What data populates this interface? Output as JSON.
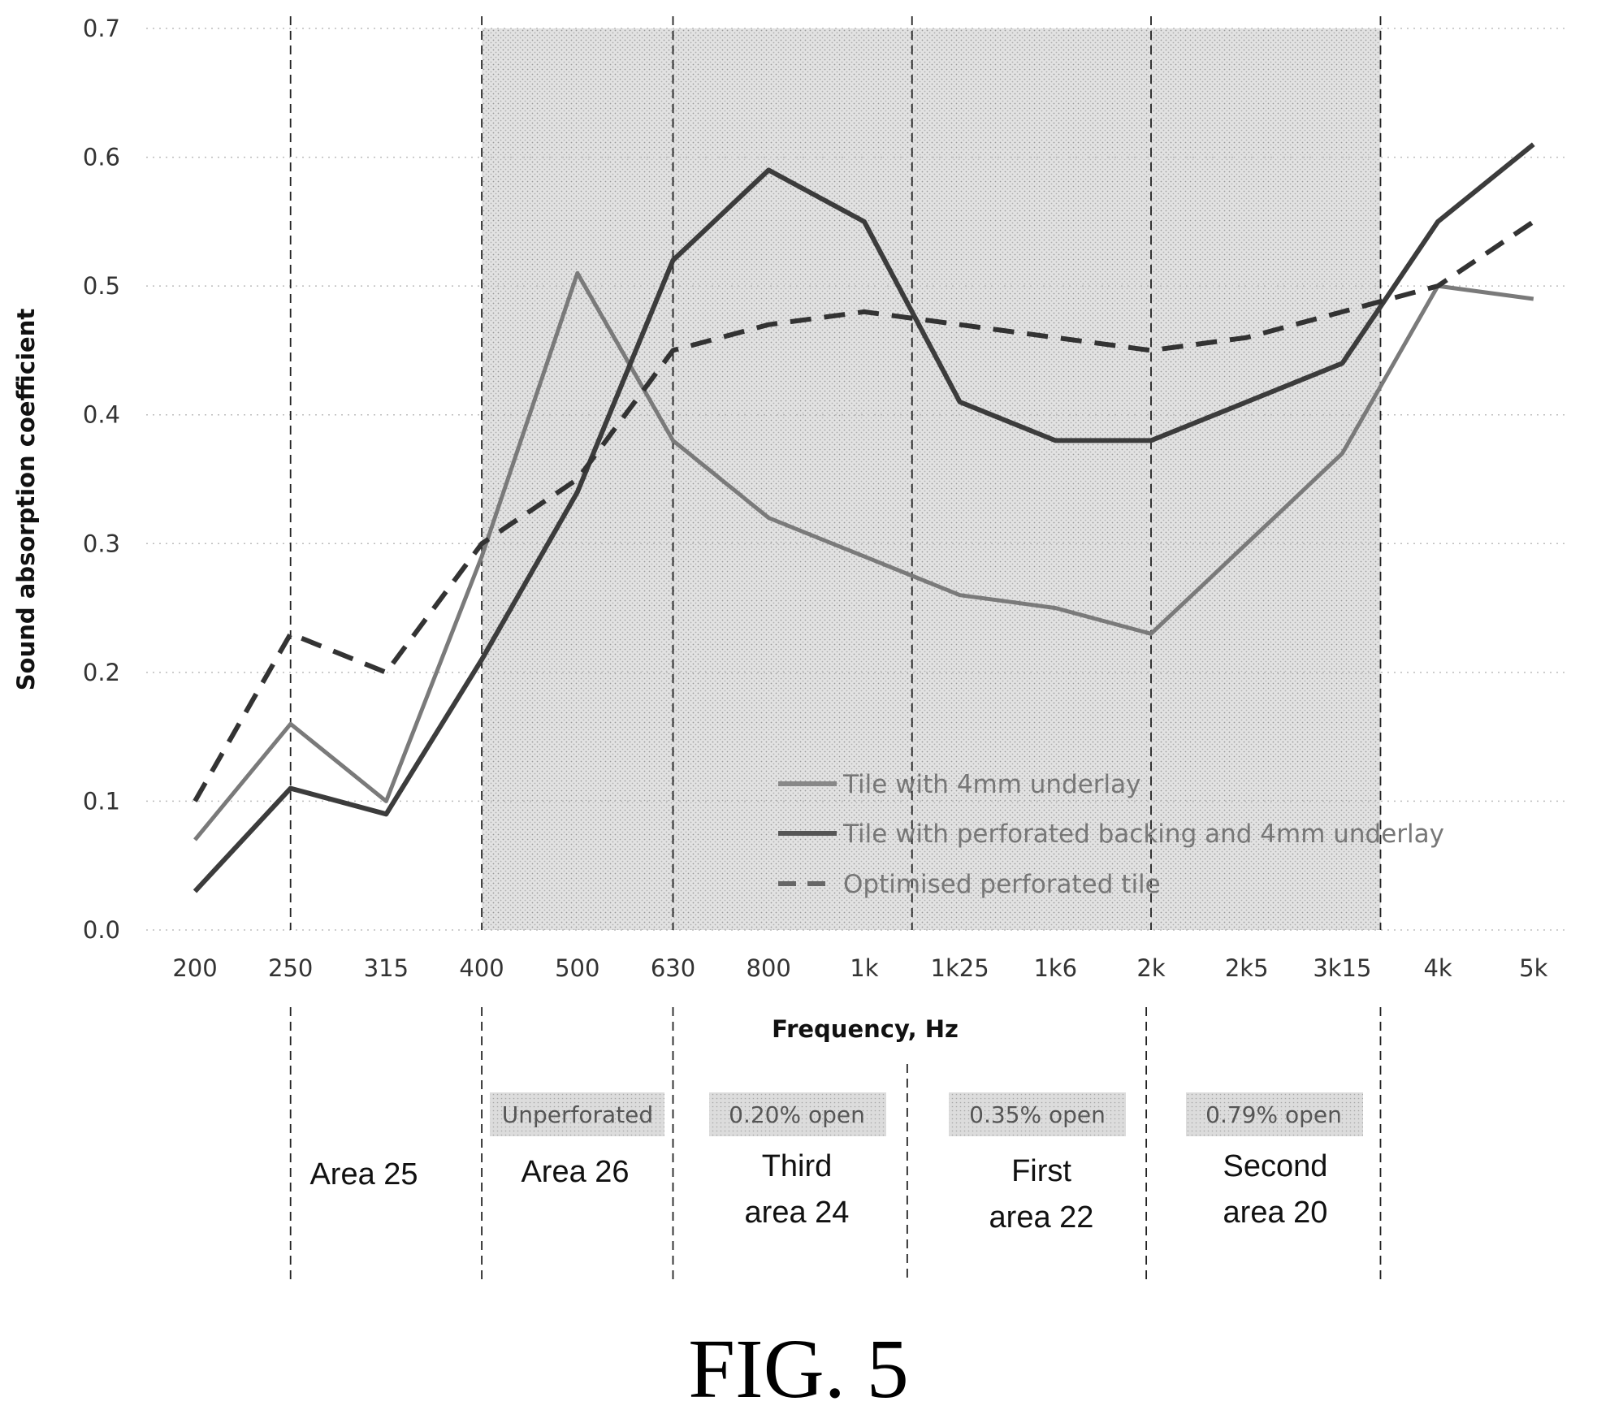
{
  "chart_data": {
    "type": "line",
    "xlabel": "Frequency, Hz",
    "ylabel": "Sound absorption coefficient",
    "categories": [
      "200",
      "250",
      "315",
      "400",
      "500",
      "630",
      "800",
      "1k",
      "1k25",
      "1k6",
      "2k",
      "2k5",
      "3k15",
      "4k",
      "5k"
    ],
    "ylim": [
      0.0,
      0.7
    ],
    "yticks": [
      "0.0",
      "0.1",
      "0.2",
      "0.3",
      "0.4",
      "0.5",
      "0.6",
      "0.7"
    ],
    "grid": "horizontal dotted",
    "legend_position": "lower-middle, inside plot",
    "series": [
      {
        "name": "Tile with 4mm underlay",
        "color": "#7a7a7a",
        "style": "solid",
        "values": [
          0.07,
          0.16,
          0.1,
          0.29,
          0.51,
          0.38,
          0.32,
          0.29,
          0.26,
          0.25,
          0.23,
          0.3,
          0.37,
          0.5,
          0.49
        ]
      },
      {
        "name": "Tile with perforated backing and 4mm underlay",
        "color": "#3c3c3c",
        "style": "solid",
        "values": [
          0.03,
          0.11,
          0.09,
          0.21,
          0.34,
          0.52,
          0.59,
          0.55,
          0.41,
          0.38,
          0.38,
          0.41,
          0.44,
          0.55,
          0.61
        ]
      },
      {
        "name": "Optimised perforated tile",
        "color": "#333333",
        "style": "dashed",
        "values": [
          0.1,
          0.23,
          0.2,
          0.3,
          0.35,
          0.45,
          0.47,
          0.48,
          0.47,
          0.46,
          0.45,
          0.46,
          0.48,
          0.5,
          0.55
        ]
      }
    ],
    "areas": [
      {
        "label": "Area 25",
        "open": ""
      },
      {
        "label": "Area 26",
        "open": "Unperforated"
      },
      {
        "label_line1": "Third",
        "label_line2": "area 24",
        "open": "0.20% open"
      },
      {
        "label_line1": "First",
        "label_line2": "area 22",
        "open": "0.35% open"
      },
      {
        "label_line1": "Second",
        "label_line2": "area 20",
        "open": "0.79% open"
      }
    ]
  },
  "figure_caption": "FIG. 5"
}
